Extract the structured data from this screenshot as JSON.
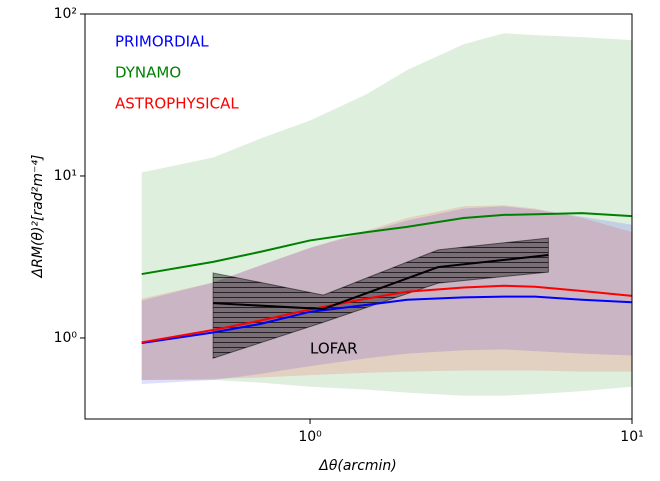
{
  "chart_data": {
    "type": "line",
    "xlabel": "Δθ(arcmin)",
    "ylabel": "ΔRM(θ)²[rad²m⁻⁴]",
    "xscale": "log",
    "yscale": "log",
    "xlim": [
      0.2,
      10
    ],
    "ylim": [
      0.316,
      100
    ],
    "xticks": [
      {
        "value": 1,
        "label": "10⁰"
      },
      {
        "value": 10,
        "label": "10¹"
      }
    ],
    "yticks": [
      {
        "value": 1,
        "label": "10⁰"
      },
      {
        "value": 10,
        "label": "10¹"
      },
      {
        "value": 100,
        "label": "10²"
      }
    ],
    "x": [
      0.3,
      0.5,
      0.7,
      1,
      1.5,
      2,
      3,
      4,
      5,
      7,
      10
    ],
    "series": [
      {
        "name": "DYNAMO",
        "color": "#008000",
        "values": [
          2.48,
          2.95,
          3.4,
          4.0,
          4.5,
          4.85,
          5.5,
          5.75,
          5.8,
          5.9,
          5.65
        ],
        "lower": [
          0.55,
          0.55,
          0.53,
          0.5,
          0.48,
          0.46,
          0.44,
          0.44,
          0.45,
          0.47,
          0.5
        ],
        "upper": [
          10.5,
          13,
          17,
          22,
          32,
          45,
          65,
          76,
          74,
          72,
          69
        ]
      },
      {
        "name": "PRIMORDIAL",
        "color": "#0000ff",
        "values": [
          0.93,
          1.08,
          1.22,
          1.45,
          1.6,
          1.72,
          1.78,
          1.8,
          1.8,
          1.72,
          1.66
        ],
        "lower": [
          0.52,
          0.55,
          0.6,
          0.67,
          0.75,
          0.8,
          0.84,
          0.85,
          0.83,
          0.8,
          0.78
        ],
        "upper": [
          1.7,
          2.2,
          2.8,
          3.6,
          4.5,
          5.3,
          6.3,
          6.5,
          6.2,
          5.6,
          5.0
        ]
      },
      {
        "name": "ASTROPHYSICAL",
        "color": "#ff0000",
        "values": [
          0.94,
          1.12,
          1.28,
          1.5,
          1.75,
          1.93,
          2.05,
          2.1,
          2.07,
          1.95,
          1.82
        ],
        "lower": [
          0.55,
          0.56,
          0.57,
          0.59,
          0.61,
          0.62,
          0.63,
          0.63,
          0.63,
          0.62,
          0.62
        ],
        "upper": [
          1.75,
          2.2,
          2.8,
          3.6,
          4.6,
          5.5,
          6.5,
          6.6,
          6.3,
          5.5,
          4.5
        ]
      },
      {
        "name": "LOFAR",
        "color": "#000000",
        "x": [
          0.5,
          1.1,
          2.5,
          5.5
        ],
        "values": [
          1.64,
          1.51,
          2.74,
          3.25
        ],
        "lower": [
          0.75,
          1.25,
          2.18,
          2.55
        ],
        "upper": [
          2.52,
          1.84,
          3.5,
          4.14
        ]
      }
    ]
  }
}
